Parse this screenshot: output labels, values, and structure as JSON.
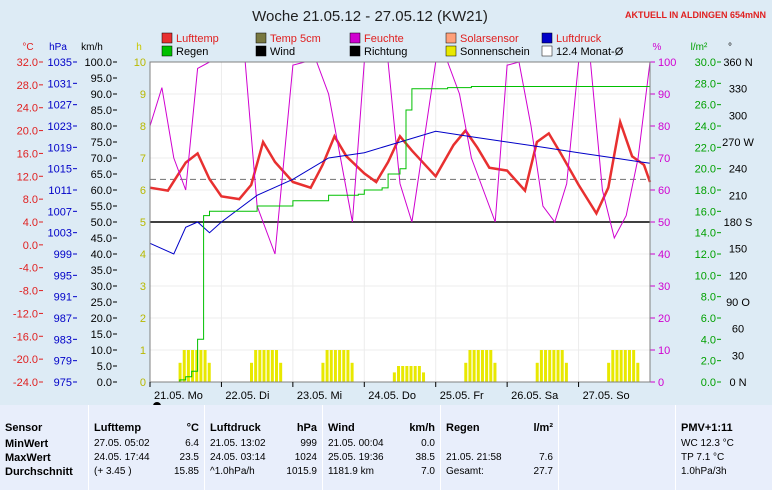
{
  "header": {
    "title": "Woche 21.05.12 - 27.05.12 (KW21)",
    "live_label": "AKTUELL IN ALDINGEN 654mNN"
  },
  "legend": {
    "row1": [
      "Lufttemp",
      "Temp 5cm",
      "Feuchte",
      "Solarsensor",
      "Luftdruck"
    ],
    "row2": [
      "Regen",
      "Wind",
      "Richtung",
      "Sonnenschein",
      "12.4 Monat-Ø"
    ],
    "colors": {
      "Lufttemp": "#e83030",
      "Temp 5cm": "#787840",
      "Feuchte": "#d000d0",
      "Solarsensor": "#ffa07a",
      "Luftdruck": "#0000c8",
      "Regen": "#00c000",
      "Wind": "#000000",
      "Richtung": "#000000",
      "Sonnenschein": "#e8e800",
      "12.4 Monat-Ø": "#ffffff"
    }
  },
  "axes": {
    "units": {
      "temp": "°C",
      "hpa": "hPa",
      "kmh": "km/h",
      "h": "h",
      "pct": "%",
      "rain": "l/m²",
      "deg": "°"
    },
    "temp_ticks": [
      "32.0",
      "28.0",
      "24.0",
      "20.0",
      "16.0",
      "12.0",
      "8.0",
      "4.0",
      "0.0",
      "-4.0",
      "-8.0",
      "-12.0",
      "-16.0",
      "-20.0",
      "-24.0"
    ],
    "hpa_ticks": [
      "1035",
      "1031",
      "1027",
      "1023",
      "1019",
      "1015",
      "1011",
      "1007",
      "1003",
      "999",
      "995",
      "991",
      "987",
      "983",
      "979",
      "975"
    ],
    "kmh_ticks": [
      "100.0",
      "95.0",
      "90.0",
      "85.0",
      "80.0",
      "75.0",
      "70.0",
      "65.0",
      "60.0",
      "55.0",
      "50.0",
      "45.0",
      "40.0",
      "35.0",
      "30.0",
      "25.0",
      "20.0",
      "15.0",
      "10.0",
      "5.0",
      "0.0"
    ],
    "h_ticks": [
      "10",
      "9",
      "8",
      "7",
      "6",
      "5",
      "4",
      "3",
      "2",
      "1",
      "0"
    ],
    "pct_ticks": [
      "100",
      "90",
      "80",
      "70",
      "60",
      "50",
      "40",
      "30",
      "20",
      "10",
      "0"
    ],
    "rain_ticks": [
      "30.0",
      "28.0",
      "26.0",
      "24.0",
      "22.0",
      "20.0",
      "18.0",
      "16.0",
      "14.0",
      "12.0",
      "10.0",
      "8.0",
      "6.0",
      "4.0",
      "2.0",
      "0.0"
    ],
    "dir_ticks": [
      "360 N",
      "330",
      "300",
      "270 W",
      "240",
      "210",
      "180 S",
      "150",
      "120",
      "90 O",
      "60",
      "30",
      "0 N"
    ],
    "days": [
      "21.05.  Mo",
      "22.05.  Di",
      "23.05.  Mi",
      "24.05.  Do",
      "25.05.  Fr",
      "26.05.  Sa",
      "27.05.  So"
    ]
  },
  "chart_data": {
    "type": "line",
    "x_unit": "hours since 21.05. 00:00",
    "xlim": [
      0,
      168
    ],
    "series": [
      {
        "name": "Lufttemp",
        "unit": "°C",
        "x": [
          0,
          6,
          12,
          16,
          20,
          24,
          30,
          34,
          38,
          42,
          48,
          54,
          58,
          62,
          66,
          72,
          76,
          80,
          84,
          88,
          96,
          102,
          106,
          110,
          114,
          120,
          126,
          130,
          134,
          138,
          144,
          150,
          154,
          158,
          162,
          166,
          168
        ],
        "y": [
          10.0,
          9.5,
          14.4,
          16.0,
          11.5,
          8.5,
          8.0,
          10.5,
          18.0,
          14.5,
          11.0,
          10.0,
          14.0,
          19.0,
          15.5,
          12.5,
          11.0,
          14.5,
          19.0,
          16.5,
          12.0,
          17.5,
          20.0,
          17.0,
          13.5,
          13.0,
          9.5,
          18.0,
          19.5,
          16.0,
          10.5,
          5.5,
          10.0,
          21.5,
          15.5,
          14.0,
          11.0
        ]
      },
      {
        "name": "Feuchte",
        "unit": "%",
        "x": [
          0,
          4,
          8,
          12,
          16,
          20,
          24,
          28,
          32,
          36,
          42,
          48,
          52,
          56,
          60,
          64,
          68,
          72,
          76,
          80,
          84,
          88,
          96,
          100,
          104,
          108,
          112,
          116,
          120,
          124,
          128,
          132,
          136,
          140,
          144,
          148,
          152,
          156,
          160,
          164,
          168
        ],
        "y": [
          80,
          92,
          70,
          60,
          98,
          100,
          100,
          100,
          100,
          55,
          40,
          99,
          100,
          100,
          90,
          70,
          50,
          100,
          100,
          100,
          62,
          50,
          100,
          100,
          90,
          70,
          60,
          50,
          99,
          100,
          80,
          55,
          50,
          62,
          100,
          100,
          60,
          45,
          52,
          70,
          100
        ]
      },
      {
        "name": "Luftdruck",
        "unit": "hPa",
        "x": [
          0,
          8,
          12,
          16,
          20,
          24,
          36,
          48,
          60,
          72,
          84,
          96,
          108,
          120,
          132,
          144,
          156,
          168
        ],
        "y": [
          1001,
          999,
          1004,
          1005,
          1003,
          1005,
          1010,
          1013,
          1017,
          1018,
          1020,
          1022,
          1021,
          1020,
          1019,
          1018,
          1017,
          1016
        ]
      },
      {
        "name": "Regen",
        "unit": "l/m²",
        "x": [
          0,
          10,
          12,
          14,
          16,
          18,
          20,
          28,
          36,
          46,
          48,
          58,
          60,
          62,
          70,
          72,
          78,
          80,
          84,
          86,
          88,
          100,
          104,
          108,
          120,
          168
        ],
        "y": [
          0,
          0.2,
          0.5,
          1.0,
          4.0,
          15.6,
          16.0,
          16.0,
          16.5,
          16.5,
          17.0,
          17.0,
          17.5,
          17.5,
          17.6,
          18.0,
          18.2,
          19.5,
          20.0,
          25.5,
          27.5,
          27.6,
          27.6,
          27.7,
          27.7,
          27.7
        ]
      }
    ],
    "sunshine_days": [
      "21.05.",
      "22.05.",
      "23.05.",
      "24.05.",
      "25.05.",
      "26.05.",
      "27.05."
    ],
    "sunshine_h": [
      1.0,
      1.0,
      1.0,
      0.5,
      1.0,
      1.0,
      1.0
    ]
  },
  "stats": {
    "sensor": {
      "title": "Sensor",
      "rows": [
        "MinWert",
        "MaxWert",
        "Durchschnitt"
      ]
    },
    "lufttemp": {
      "title": "Lufttemp",
      "unit": "°C",
      "rows": [
        {
          "a": "27.05.  05:02",
          "b": "6.4"
        },
        {
          "a": "24.05.  17:44",
          "b": "23.5"
        },
        {
          "a": "(+ 3.45 )",
          "b": "15.85"
        }
      ]
    },
    "luftdruck": {
      "title": "Luftdruck",
      "unit": "hPa",
      "rows": [
        {
          "a": "21.05.  13:02",
          "b": "999"
        },
        {
          "a": "24.05.  03:14",
          "b": "1024"
        },
        {
          "a": "^1.0hPa/h",
          "b": "1015.9"
        }
      ]
    },
    "wind": {
      "title": "Wind",
      "unit": "km/h",
      "rows": [
        {
          "a": "21.05.  00:04",
          "b": "0.0"
        },
        {
          "a": "25.05.  19:36",
          "b": "38.5"
        },
        {
          "a": "1181.9 km",
          "b": "7.0"
        }
      ]
    },
    "regen": {
      "title": "Regen",
      "unit": "l/m²",
      "rows": [
        {
          "a": "21.05.  21:58",
          "b": "7.6"
        },
        {
          "a": "Gesamt:",
          "b": "27.7"
        }
      ]
    },
    "pmv": {
      "title": "PMV+1:11",
      "rows": [
        "WC 12.3 °C",
        "TP 7.1 °C",
        "1.0hPa/3h"
      ]
    }
  }
}
